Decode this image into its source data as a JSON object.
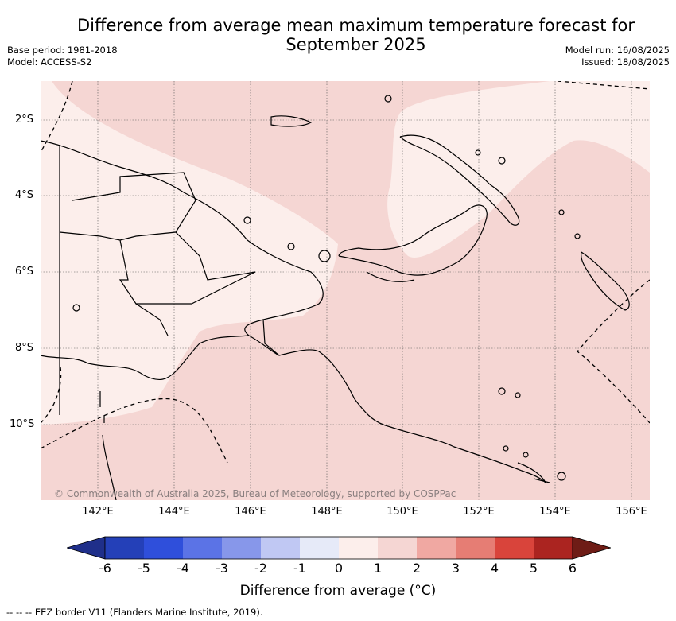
{
  "title_line1": "Difference from average mean maximum temperature forecast for",
  "title_line2": "September 2025",
  "meta_left": [
    "Base period: 1981-2018",
    "Model: ACCESS-S2"
  ],
  "meta_right": [
    "Model run: 16/08/2025",
    "Issued: 18/08/2025"
  ],
  "copyright": "© Commonwealth of Australia 2025, Bureau of Meteorology, supported by COSPPac",
  "lat_ticks": [
    "2°S",
    "4°S",
    "6°S",
    "8°S",
    "10°S"
  ],
  "lon_ticks": [
    "142°E",
    "144°E",
    "146°E",
    "148°E",
    "150°E",
    "152°E",
    "154°E",
    "156°E"
  ],
  "colorbar": {
    "labels": [
      "-6",
      "-5",
      "-4",
      "-3",
      "-2",
      "-1",
      "0",
      "1",
      "2",
      "3",
      "4",
      "5",
      "6"
    ],
    "colors": [
      "#1f2f8a",
      "#2440b8",
      "#2f4fdb",
      "#5b73e6",
      "#8797ea",
      "#c0c8f3",
      "#e6eaf8",
      "#fceeeb",
      "#f5d6d3",
      "#f0a8a2",
      "#e67d74",
      "#d9443b",
      "#ab2420",
      "#6e1c16"
    ],
    "title": "Difference from average (°C)"
  },
  "legend": "-- -- -- EEZ border V11 (Flanders Marine Institute, 2019).",
  "map_colors": {
    "light": "#fceeeb",
    "medium": "#f5d6d3",
    "land_line": "#000000"
  }
}
